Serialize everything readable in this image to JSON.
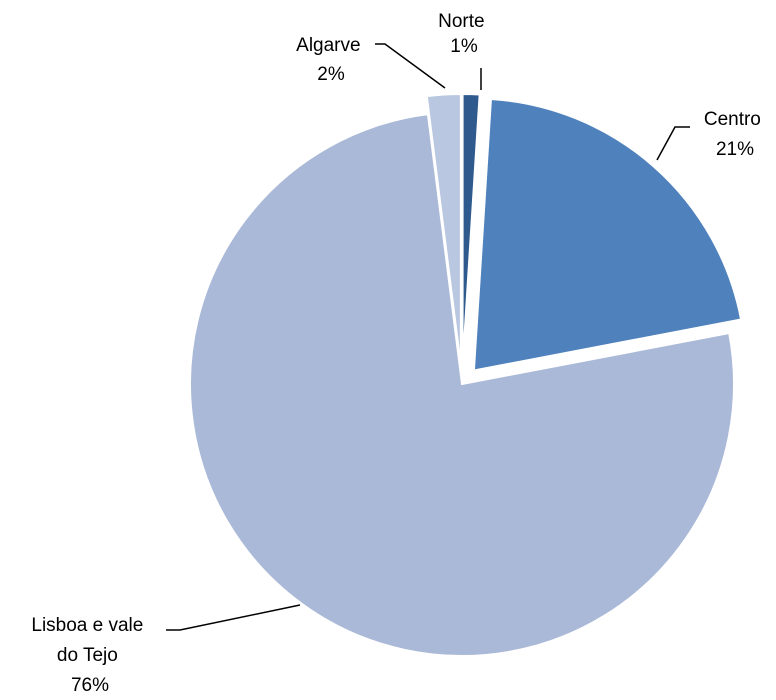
{
  "chart_data": {
    "type": "pie",
    "title": "",
    "slices": [
      {
        "label_lines": [
          "Norte"
        ],
        "value_label": "1%",
        "value": 1,
        "color": "#2e5a8e",
        "exploded": true
      },
      {
        "label_lines": [
          "Centro"
        ],
        "value_label": "21%",
        "value": 21,
        "color": "#4f81bd",
        "exploded": true
      },
      {
        "label_lines": [
          "Lisboa e vale",
          "do Tejo"
        ],
        "value_label": "76%",
        "value": 76,
        "color": "#aab9d7",
        "exploded": false
      },
      {
        "label_lines": [
          "Algarve"
        ],
        "value_label": "2%",
        "value": 2,
        "color": "#b9c7e0",
        "exploded": true
      }
    ],
    "legend": "none",
    "start_angle_deg": 0,
    "direction": "clockwise"
  }
}
